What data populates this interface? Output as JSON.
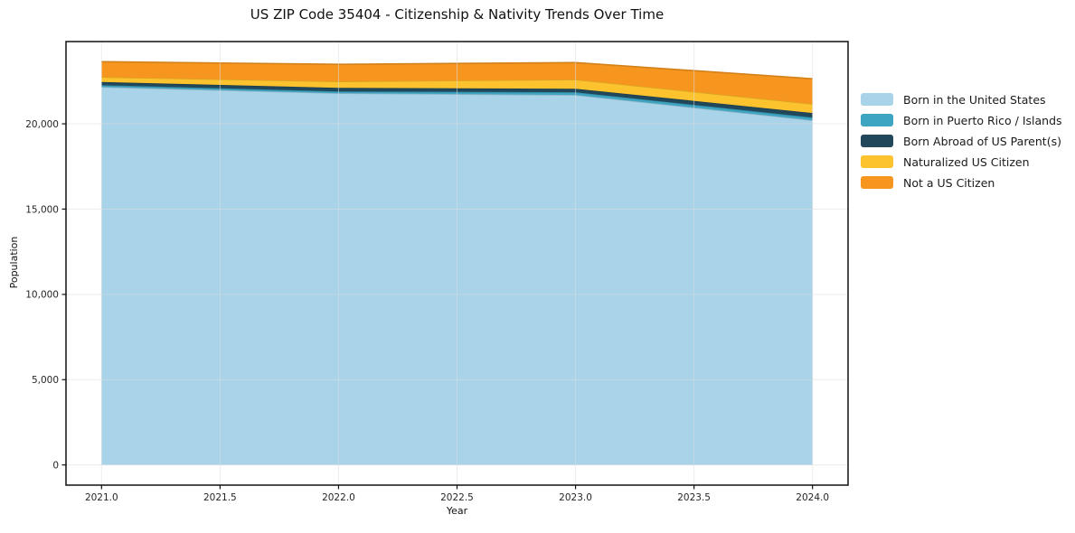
{
  "chart_data": {
    "type": "area",
    "stacked": true,
    "title": "US ZIP Code 35404 - Citizenship & Nativity Trends Over Time",
    "xlabel": "Year",
    "ylabel": "Population",
    "x": [
      2021,
      2022,
      2023,
      2024
    ],
    "series": [
      {
        "name": "Born in the United States",
        "color": "#a8d3e8",
        "values": [
          22160,
          21795,
          21690,
          20210
        ]
      },
      {
        "name": "Born in Puerto Rico / Islands",
        "color": "#3da5c2",
        "values": [
          105,
          105,
          160,
          160
        ]
      },
      {
        "name": "Born Abroad of US Parent(s)",
        "color": "#21485a",
        "values": [
          185,
          210,
          210,
          265
        ]
      },
      {
        "name": "Naturalized US Citizen",
        "color": "#fdc32e",
        "values": [
          290,
          370,
          530,
          525
        ]
      },
      {
        "name": "Not a US Citizen",
        "color": "#f7961f",
        "values": [
          900,
          1005,
          1000,
          1480
        ]
      }
    ],
    "totals": [
      23640,
      23485,
      23590,
      22640
    ],
    "xlim": [
      2020.85,
      2024.15
    ],
    "ylim": [
      -1182,
      24822
    ],
    "xticks": {
      "values": [
        2021.0,
        2021.5,
        2022.0,
        2022.5,
        2023.0,
        2023.5,
        2024.0
      ],
      "labels": [
        "2021.0",
        "2021.5",
        "2022.0",
        "2022.5",
        "2023.0",
        "2023.5",
        "2024.0"
      ]
    },
    "yticks": {
      "values": [
        0,
        5000,
        10000,
        15000,
        20000
      ],
      "labels": [
        "0",
        "5,000",
        "10,000",
        "15,000",
        "20,000"
      ]
    },
    "grid": true,
    "legend_position": "right",
    "colors": {
      "background": "#ffffff",
      "spine": "#111111",
      "gridline": "#dedede",
      "tick_label": "#262626",
      "text": "#111111"
    }
  }
}
